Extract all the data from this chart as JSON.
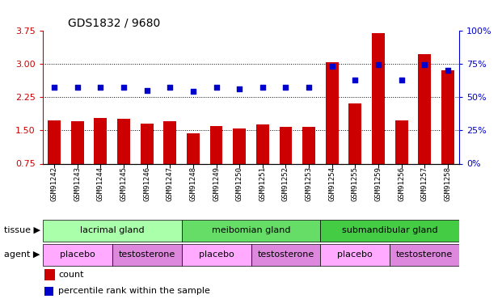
{
  "title": "GDS1832 / 9680",
  "samples": [
    "GSM91242",
    "GSM91243",
    "GSM91244",
    "GSM91245",
    "GSM91246",
    "GSM91247",
    "GSM91248",
    "GSM91249",
    "GSM91250",
    "GSM91251",
    "GSM91252",
    "GSM91253",
    "GSM91254",
    "GSM91255",
    "GSM91259",
    "GSM91256",
    "GSM91257",
    "GSM91258"
  ],
  "counts": [
    1.72,
    1.7,
    1.78,
    1.76,
    1.65,
    1.7,
    1.43,
    1.6,
    1.55,
    1.63,
    1.57,
    1.58,
    3.03,
    2.1,
    3.68,
    1.72,
    3.22,
    2.85
  ],
  "percentiles": [
    57,
    57,
    57,
    57,
    55,
    57,
    54,
    57,
    56,
    57,
    57,
    57,
    73,
    63,
    74,
    63,
    74,
    70
  ],
  "ylim_left": [
    0.75,
    3.75
  ],
  "ylim_right": [
    0,
    100
  ],
  "yticks_left": [
    0.75,
    1.5,
    2.25,
    3.0,
    3.75
  ],
  "yticks_right": [
    0,
    25,
    50,
    75,
    100
  ],
  "bar_color": "#cc0000",
  "dot_color": "#0000cc",
  "bar_width": 0.55,
  "tissue_groups": [
    {
      "label": "lacrimal gland",
      "start": 0,
      "end": 6,
      "color": "#aaffaa"
    },
    {
      "label": "meibomian gland",
      "start": 6,
      "end": 12,
      "color": "#66dd66"
    },
    {
      "label": "submandibular gland",
      "start": 12,
      "end": 18,
      "color": "#44cc44"
    }
  ],
  "agent_groups": [
    {
      "label": "placebo",
      "start": 0,
      "end": 3,
      "color": "#ffaaff"
    },
    {
      "label": "testosterone",
      "start": 3,
      "end": 6,
      "color": "#dd88dd"
    },
    {
      "label": "placebo",
      "start": 6,
      "end": 9,
      "color": "#ffaaff"
    },
    {
      "label": "testosterone",
      "start": 9,
      "end": 12,
      "color": "#dd88dd"
    },
    {
      "label": "placebo",
      "start": 12,
      "end": 15,
      "color": "#ffaaff"
    },
    {
      "label": "testosterone",
      "start": 15,
      "end": 18,
      "color": "#dd88dd"
    }
  ],
  "tissue_label": "tissue",
  "agent_label": "agent",
  "legend_count_label": "count",
  "legend_pct_label": "percentile rank within the sample",
  "left_axis_color": "#cc0000",
  "right_axis_color": "#0000cc",
  "bg_color": "#ffffff",
  "tick_label_fontsize": 6.5,
  "title_fontsize": 10,
  "row_label_fontsize": 8,
  "row_text_fontsize": 8,
  "legend_fontsize": 8
}
